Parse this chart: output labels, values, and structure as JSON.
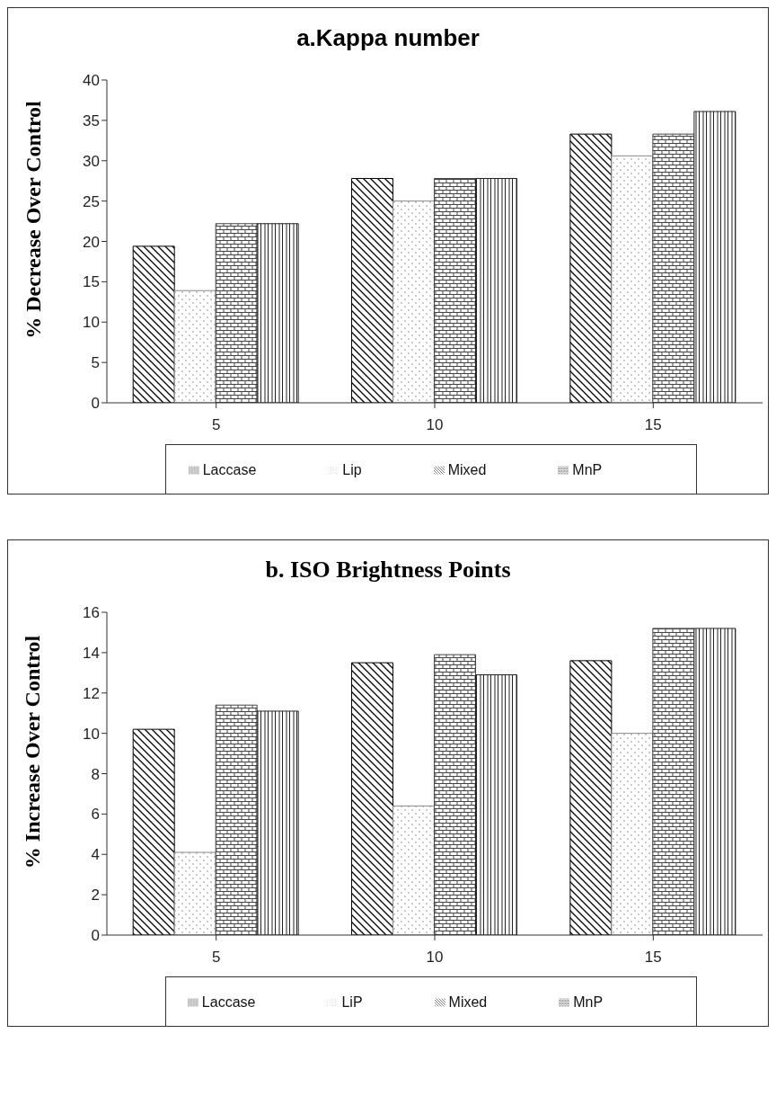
{
  "chart_data": [
    {
      "type": "bar",
      "title": "a.Kappa number",
      "ylabel": "% Decrease Over Control",
      "categories": [
        "5",
        "10",
        "15"
      ],
      "series": [
        {
          "name": "Mixed",
          "color": "#000000",
          "values": [
            19.4,
            27.8,
            33.3
          ]
        },
        {
          "name": "Lip",
          "color": "#888888",
          "values": [
            13.9,
            25,
            30.6
          ]
        },
        {
          "name": "MnP",
          "color": "#444444",
          "values": [
            22.2,
            27.8,
            33.3
          ]
        },
        {
          "name": "Laccase",
          "color": "#222222",
          "values": [
            22.2,
            27.8,
            36.1
          ]
        }
      ],
      "ylim": [
        0,
        40
      ],
      "yticks": [
        0,
        5,
        10,
        15,
        20,
        25,
        30,
        35,
        40
      ],
      "grid": false,
      "legend": "bottom"
    },
    {
      "type": "bar",
      "title": "b. ISO Brightness Points",
      "ylabel": "% Increase Over Control",
      "categories": [
        "5",
        "10",
        "15"
      ],
      "series": [
        {
          "name": "Mixed",
          "color": "#000000",
          "values": [
            10.2,
            13.5,
            13.6
          ]
        },
        {
          "name": "LiP",
          "color": "#888888",
          "values": [
            4.1,
            6.4,
            10.0
          ]
        },
        {
          "name": "MnP",
          "color": "#444444",
          "values": [
            11.4,
            13.9,
            15.2
          ]
        },
        {
          "name": "Laccase",
          "color": "#222222",
          "values": [
            11.1,
            12.9,
            15.2
          ]
        }
      ],
      "ylim": [
        0,
        16
      ],
      "yticks": [
        0,
        2,
        4,
        6,
        8,
        10,
        12,
        14,
        16
      ],
      "grid": false,
      "legend": "bottom"
    }
  ]
}
